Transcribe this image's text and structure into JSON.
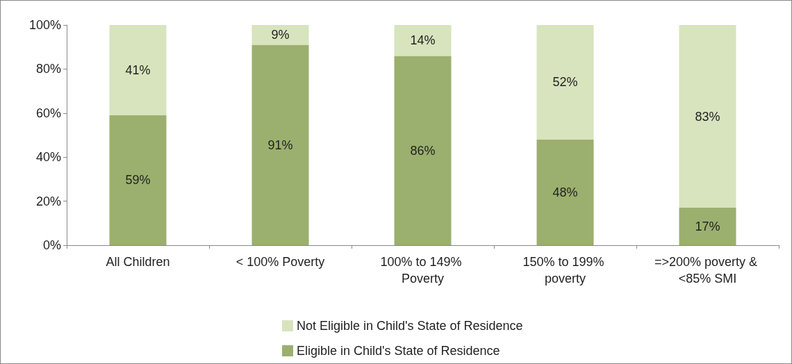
{
  "chart_data": {
    "type": "bar",
    "stacked": true,
    "categories": [
      "All Children",
      "< 100% Poverty",
      "100% to 149% Poverty",
      "150% to 199% poverty",
      "=>200% poverty & <85% SMI"
    ],
    "series": [
      {
        "name": "Eligible in Child's State of Residence",
        "color": "#9bb06e",
        "values": [
          59,
          91,
          86,
          48,
          17
        ],
        "value_labels": [
          "59%",
          "91%",
          "86%",
          "48%",
          "17%"
        ]
      },
      {
        "name": "Not Eligible in Child's State of Residence",
        "color": "#d7e4bd",
        "values": [
          41,
          9,
          14,
          52,
          83
        ],
        "value_labels": [
          "41%",
          "9%",
          "14%",
          "52%",
          "83%"
        ]
      }
    ],
    "ylim": [
      0,
      100
    ],
    "yticks": [
      {
        "value": 0,
        "label": "0%"
      },
      {
        "value": 20,
        "label": "20%"
      },
      {
        "value": 40,
        "label": "40%"
      },
      {
        "value": 60,
        "label": "60%"
      },
      {
        "value": 80,
        "label": "80%"
      },
      {
        "value": 100,
        "label": "100%"
      }
    ],
    "grid": false,
    "legend": "bottom"
  }
}
